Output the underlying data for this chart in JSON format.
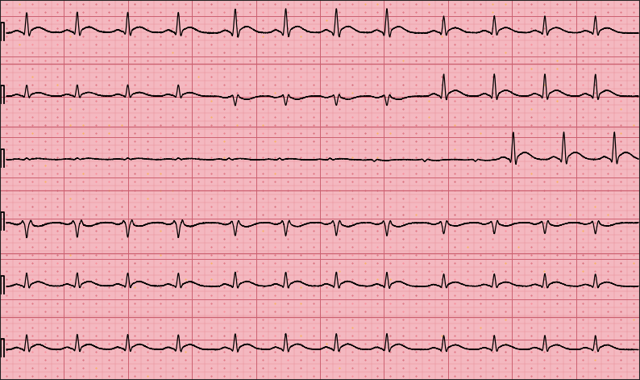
{
  "bg_color": "#F4B8C0",
  "grid_minor_color": "#E8909A",
  "grid_major_color": "#CC6070",
  "grid_border_color": "#AA4455",
  "ecg_color": "#000000",
  "fig_width": 7.94,
  "fig_height": 4.71,
  "dpi": 100,
  "n_rows": 6,
  "total_duration": 10.0,
  "minor_per_major": 5,
  "major_cols": 10,
  "major_rows": 6,
  "minor_cols": 50,
  "minor_rows": 47
}
